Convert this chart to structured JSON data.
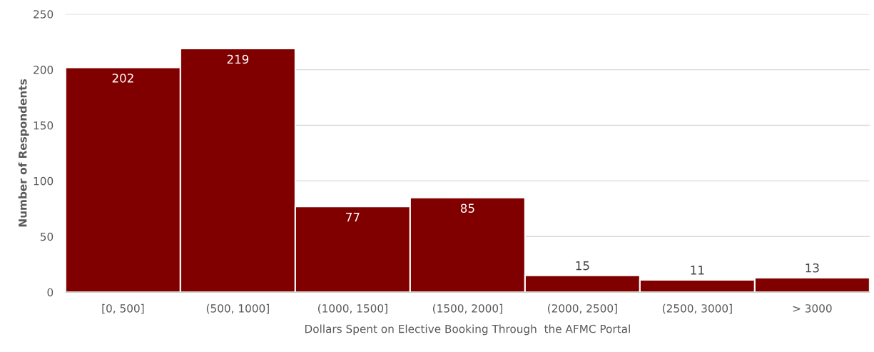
{
  "chart_data": {
    "type": "bar",
    "xlabel": "Dollars Spent on Elective Booking Through  the AFMC Portal",
    "ylabel": "Number of Respondents",
    "categories": [
      "[0, 500]",
      "(500, 1000]",
      "(1000, 1500]",
      "(1500, 2000]",
      "(2000, 2500]",
      "(2500, 3000]",
      "> 3000"
    ],
    "values": [
      202,
      219,
      77,
      85,
      15,
      11,
      13
    ],
    "color": "#800000",
    "ylim": [
      0,
      250
    ],
    "yticks": [
      0,
      50,
      100,
      150,
      200,
      250
    ],
    "grid": "y",
    "data_labels": true
  }
}
